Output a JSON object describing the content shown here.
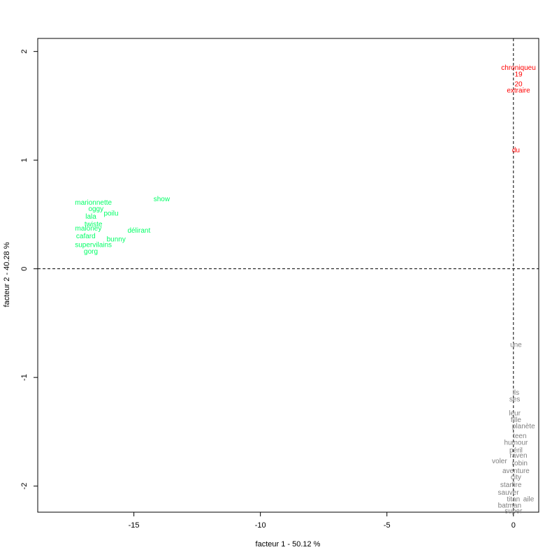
{
  "chart_data": {
    "type": "scatter",
    "title": "",
    "xlabel": "facteur  1  - 50.12 %",
    "ylabel": "facteur  2  - 40.28 %",
    "xlim": [
      -18.8,
      1.0
    ],
    "ylim": [
      -2.24,
      2.12
    ],
    "xticks": [
      -15,
      -10,
      -5,
      0
    ],
    "yticks": [
      -2,
      -1,
      0,
      1,
      2
    ],
    "grid": false,
    "legend": "none",
    "reference_lines": {
      "x": 0,
      "y": 0,
      "style": "dashed"
    },
    "series": [
      {
        "color": "#ff0000",
        "points": [
          {
            "label": "chroniqueu",
            "x": 0.2,
            "y": 1.85
          },
          {
            "label": "19",
            "x": 0.2,
            "y": 1.79
          },
          {
            "label": "20",
            "x": 0.2,
            "y": 1.7
          },
          {
            "label": "extraire",
            "x": 0.2,
            "y": 1.64
          },
          {
            "label": "du",
            "x": 0.1,
            "y": 1.09
          }
        ]
      },
      {
        "color": "#00ff66",
        "points": [
          {
            "label": "show",
            "x": -13.9,
            "y": 0.64
          },
          {
            "label": "marionnette",
            "x": -16.6,
            "y": 0.61
          },
          {
            "label": "oggy",
            "x": -16.5,
            "y": 0.55
          },
          {
            "label": "poilu",
            "x": -15.9,
            "y": 0.51
          },
          {
            "label": "lala",
            "x": -16.7,
            "y": 0.48
          },
          {
            "label": "twiste",
            "x": -16.6,
            "y": 0.41
          },
          {
            "label": "maloney",
            "x": -16.8,
            "y": 0.37
          },
          {
            "label": "délirant",
            "x": -14.8,
            "y": 0.35
          },
          {
            "label": "cafard",
            "x": -16.9,
            "y": 0.3
          },
          {
            "label": "bunny",
            "x": -15.7,
            "y": 0.27
          },
          {
            "label": "supervilains",
            "x": -16.6,
            "y": 0.22
          },
          {
            "label": "gorg",
            "x": -16.7,
            "y": 0.16
          }
        ]
      },
      {
        "color": "#808080",
        "points": [
          {
            "label": "une",
            "x": 0.1,
            "y": -0.7
          },
          {
            "label": "ils",
            "x": 0.1,
            "y": -1.14
          },
          {
            "label": "ses",
            "x": 0.05,
            "y": -1.2
          },
          {
            "label": "leur",
            "x": 0.05,
            "y": -1.33
          },
          {
            "label": "fille",
            "x": 0.1,
            "y": -1.39
          },
          {
            "label": "planète",
            "x": 0.4,
            "y": -1.45
          },
          {
            "label": "teen",
            "x": 0.25,
            "y": -1.54
          },
          {
            "label": "humour",
            "x": 0.1,
            "y": -1.6
          },
          {
            "label": "péril",
            "x": 0.1,
            "y": -1.67
          },
          {
            "label": "raven",
            "x": 0.2,
            "y": -1.72
          },
          {
            "label": "voler",
            "x": -0.55,
            "y": -1.77
          },
          {
            "label": "robin",
            "x": 0.25,
            "y": -1.79
          },
          {
            "label": "aventure",
            "x": 0.1,
            "y": -1.86
          },
          {
            "label": "city",
            "x": 0.1,
            "y": -1.92
          },
          {
            "label": "starfire",
            "x": -0.1,
            "y": -1.99
          },
          {
            "label": "sauver",
            "x": -0.2,
            "y": -2.06
          },
          {
            "label": "titan",
            "x": 0.0,
            "y": -2.12
          },
          {
            "label": "aile",
            "x": 0.6,
            "y": -2.12
          },
          {
            "label": "batman",
            "x": -0.15,
            "y": -2.18
          },
          {
            "label": "super",
            "x": 0.0,
            "y": -2.23
          }
        ]
      }
    ]
  }
}
